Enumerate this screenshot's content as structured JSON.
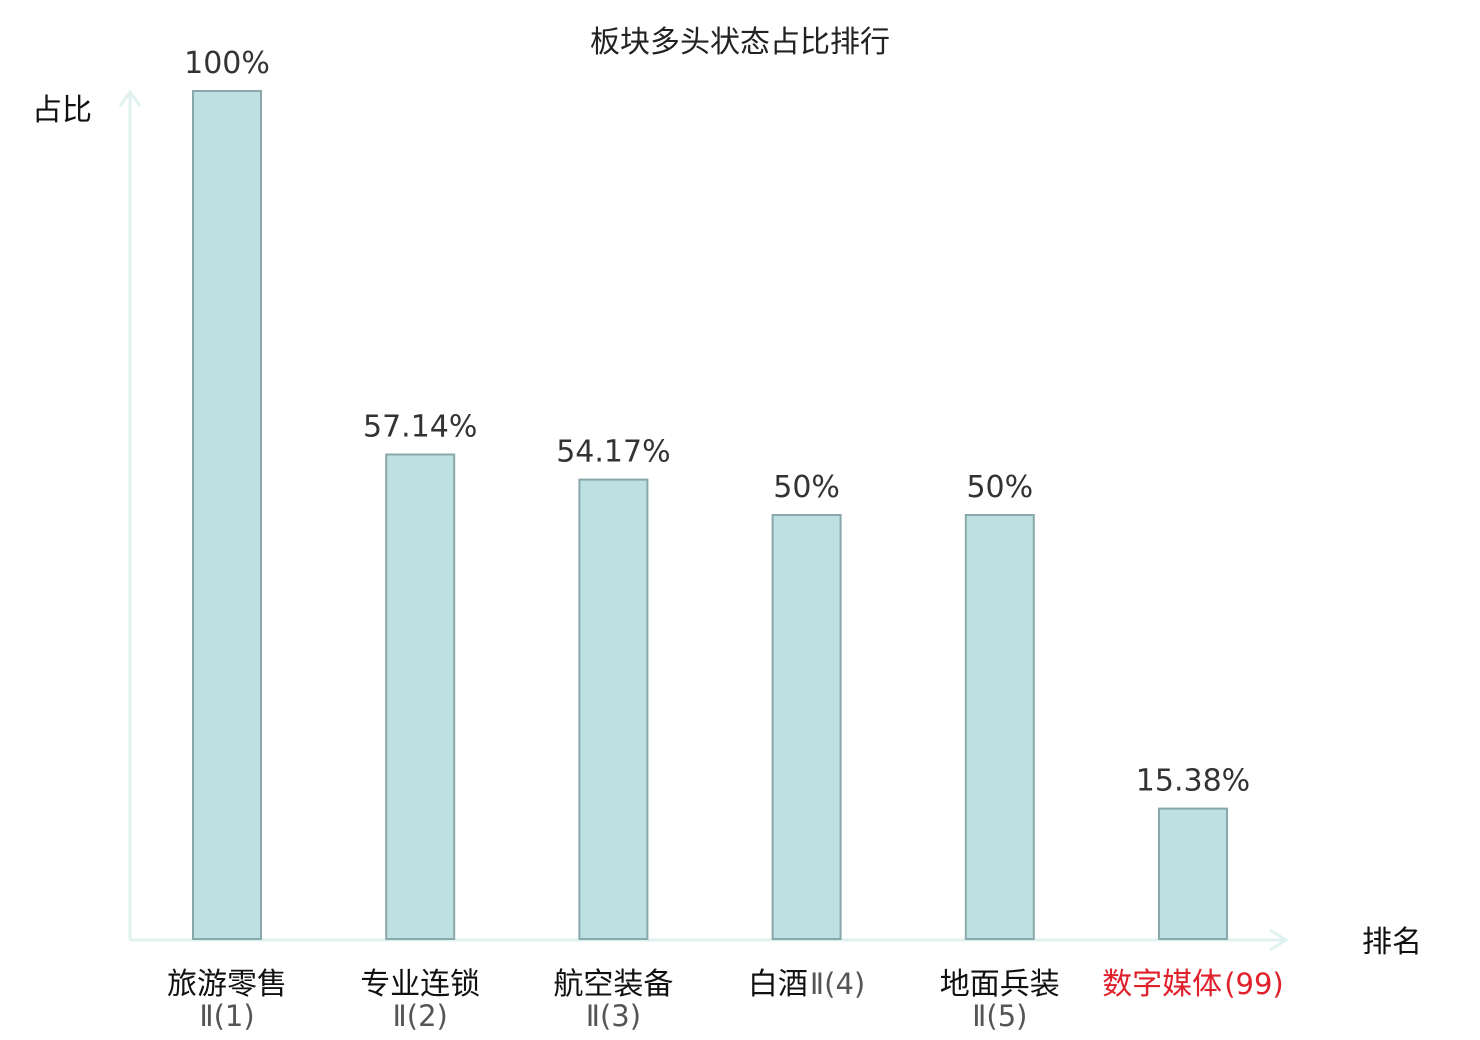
{
  "colors": {
    "bar_fill": "#bde0e2",
    "bar_stroke": "#88a8aa",
    "axis": "#e0f2ef",
    "highlight": "#e0202a"
  },
  "chart_data": {
    "type": "bar",
    "title": "板块多头状态占比排行",
    "ylabel": "占比",
    "xlabel": "排名",
    "ylim": [
      0,
      100
    ],
    "value_suffix": "%",
    "grid": false,
    "categories": [
      {
        "name": "旅游零售",
        "rank_text": "Ⅱ(1)",
        "value": 100,
        "label": "100%",
        "highlight": false
      },
      {
        "name": "专业连锁",
        "rank_text": "Ⅱ(2)",
        "value": 57.14,
        "label": "57.14%",
        "highlight": false
      },
      {
        "name": "航空装备",
        "rank_text": "Ⅱ(3)",
        "value": 54.17,
        "label": "54.17%",
        "highlight": false
      },
      {
        "name": "白酒",
        "rank_text": "Ⅱ(4)",
        "value": 50,
        "label": "50%",
        "highlight": false
      },
      {
        "name": "地面兵装",
        "rank_text": "Ⅱ(5)",
        "value": 50,
        "label": "50%",
        "highlight": false
      },
      {
        "name": "数字媒体",
        "rank_text": "(99)",
        "value": 15.38,
        "label": "15.38%",
        "highlight": true
      }
    ]
  }
}
